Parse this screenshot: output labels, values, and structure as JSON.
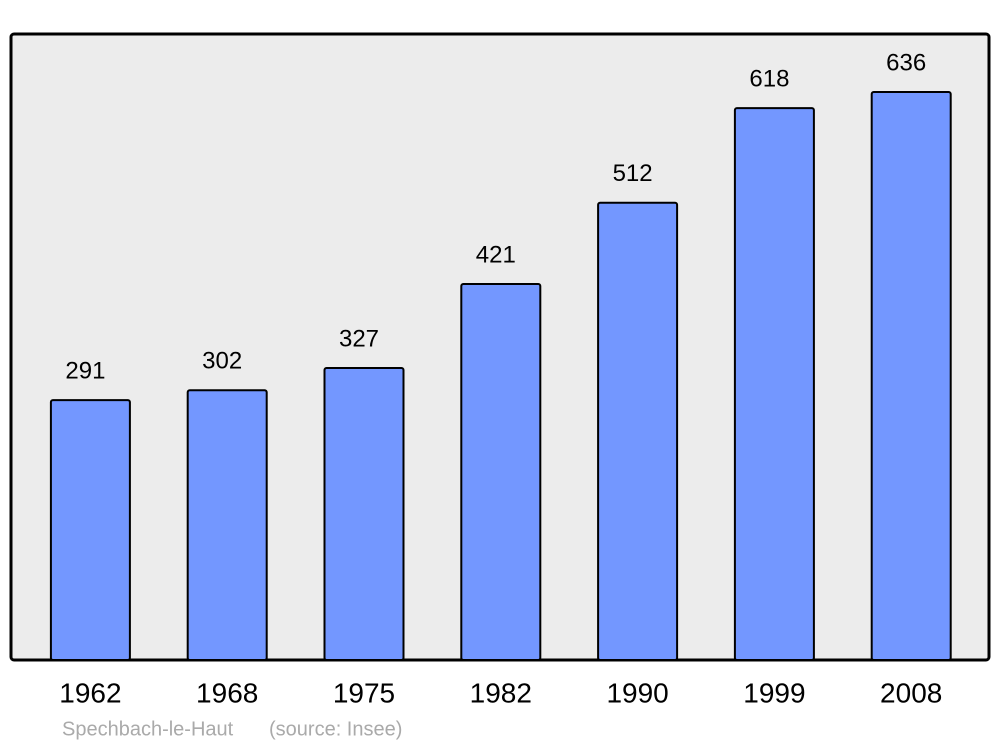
{
  "chart_data": {
    "type": "bar",
    "categories": [
      "1962",
      "1968",
      "1975",
      "1982",
      "1990",
      "1999",
      "2008"
    ],
    "values": [
      291,
      302,
      327,
      421,
      512,
      618,
      636
    ],
    "color": "#7397ff",
    "caption": "Spechbach-le-Haut",
    "source": "(source: Insee)"
  }
}
